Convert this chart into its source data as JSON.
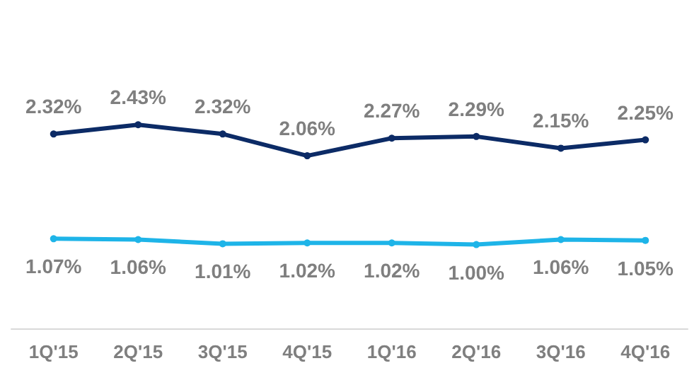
{
  "chart_data": {
    "type": "line",
    "categories": [
      "1Q'15",
      "2Q'15",
      "3Q'15",
      "4Q'15",
      "1Q'16",
      "2Q'16",
      "3Q'16",
      "4Q'16"
    ],
    "series": [
      {
        "color": "#0c2b66",
        "values": [
          2.32,
          2.43,
          2.32,
          2.06,
          2.27,
          2.29,
          2.15,
          2.25
        ],
        "value_labels": [
          "2.32%",
          "2.43%",
          "2.32%",
          "2.06%",
          "2.27%",
          "2.29%",
          "2.15%",
          "2.25%"
        ]
      },
      {
        "color": "#1eb4e8",
        "values": [
          1.07,
          1.06,
          1.01,
          1.02,
          1.02,
          1.0,
          1.06,
          1.05
        ],
        "value_labels": [
          "1.07%",
          "1.06%",
          "1.01%",
          "1.02%",
          "1.02%",
          "1.00%",
          "1.06%",
          "1.05%"
        ]
      }
    ],
    "marker": "circle",
    "line_style": "solid"
  }
}
